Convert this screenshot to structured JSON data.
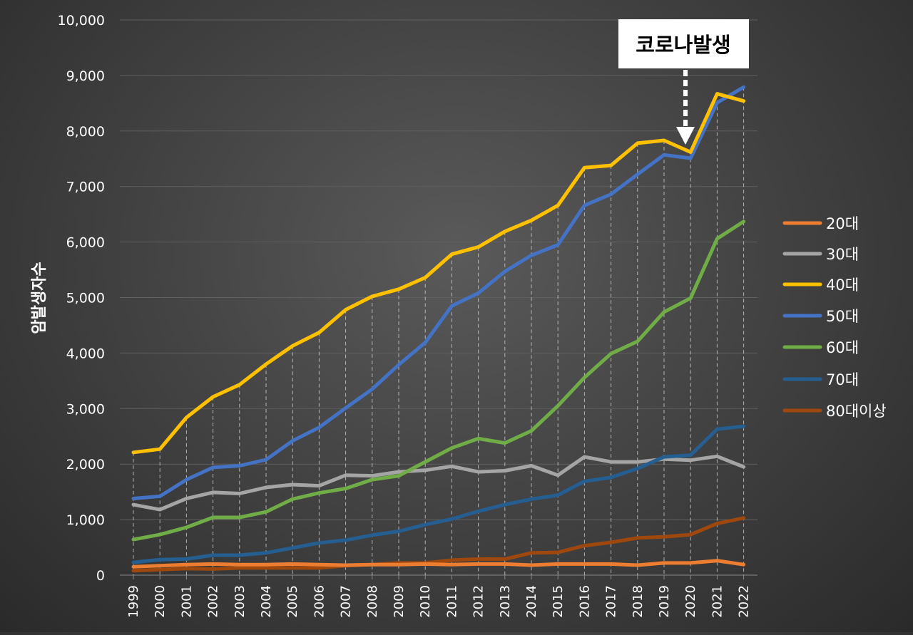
{
  "chart_data": {
    "type": "line",
    "title": "",
    "xlabel": "",
    "ylabel": "암발생자수",
    "ylim": [
      0,
      10000
    ],
    "yticks": [
      "0",
      "1,000",
      "2,000",
      "3,000",
      "4,000",
      "5,000",
      "6,000",
      "7,000",
      "8,000",
      "9,000",
      "10,000"
    ],
    "ytick_values": [
      0,
      1000,
      2000,
      3000,
      4000,
      5000,
      6000,
      7000,
      8000,
      9000,
      10000
    ],
    "grid": true,
    "legend_position": "right",
    "categories": [
      "1999",
      "2000",
      "2001",
      "2002",
      "2003",
      "2004",
      "2005",
      "2006",
      "2007",
      "2008",
      "2009",
      "2010",
      "2011",
      "2012",
      "2013",
      "2014",
      "2015",
      "2016",
      "2017",
      "2018",
      "2019",
      "2020",
      "2021",
      "2022"
    ],
    "series": [
      {
        "name": "20대",
        "color": "#ed7d31",
        "values": [
          150,
          170,
          190,
          200,
          190,
          190,
          200,
          190,
          180,
          190,
          190,
          200,
          190,
          200,
          200,
          180,
          200,
          200,
          200,
          180,
          220,
          220,
          260,
          190
        ]
      },
      {
        "name": "30대",
        "color": "#a5a5a5",
        "values": [
          1270,
          1180,
          1380,
          1490,
          1470,
          1580,
          1630,
          1610,
          1800,
          1790,
          1860,
          1890,
          1960,
          1860,
          1880,
          1970,
          1800,
          2130,
          2040,
          2040,
          2090,
          2070,
          2140,
          1950
        ]
      },
      {
        "name": "40대",
        "color": "#ffc000",
        "values": [
          2210,
          2270,
          2840,
          3210,
          3430,
          3800,
          4130,
          4370,
          4780,
          5020,
          5150,
          5360,
          5780,
          5910,
          6190,
          6390,
          6660,
          7340,
          7380,
          7780,
          7830,
          7620,
          8670,
          8540
        ]
      },
      {
        "name": "50대",
        "color": "#4472c4",
        "values": [
          1380,
          1420,
          1720,
          1940,
          1970,
          2080,
          2420,
          2660,
          3010,
          3350,
          3790,
          4190,
          4850,
          5080,
          5470,
          5760,
          5950,
          6660,
          6860,
          7220,
          7570,
          7510,
          8510,
          8790
        ]
      },
      {
        "name": "60대",
        "color": "#70ad47",
        "values": [
          640,
          730,
          860,
          1040,
          1040,
          1140,
          1370,
          1480,
          1560,
          1720,
          1790,
          2040,
          2290,
          2460,
          2380,
          2600,
          3050,
          3560,
          3990,
          4210,
          4740,
          4990,
          6060,
          6370
        ]
      },
      {
        "name": "70대",
        "color": "#255e91",
        "values": [
          230,
          280,
          290,
          360,
          360,
          400,
          490,
          580,
          630,
          720,
          790,
          910,
          1010,
          1150,
          1270,
          1370,
          1440,
          1690,
          1760,
          1920,
          2130,
          2160,
          2630,
          2680
        ]
      },
      {
        "name": "80대이상",
        "color": "#9e480e",
        "values": [
          80,
          100,
          120,
          110,
          130,
          130,
          130,
          130,
          170,
          190,
          220,
          220,
          270,
          290,
          290,
          400,
          410,
          530,
          590,
          670,
          690,
          730,
          930,
          1030
        ]
      }
    ],
    "annotation": {
      "text": "코로나발생",
      "category": "2020"
    }
  }
}
